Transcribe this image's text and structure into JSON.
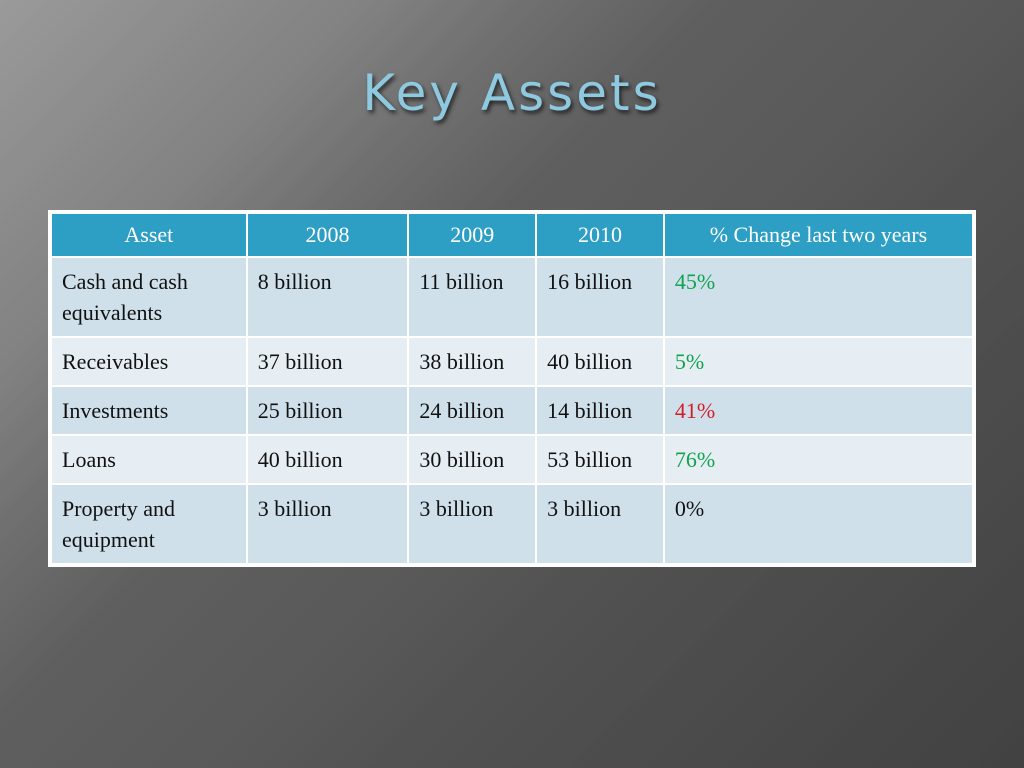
{
  "slide": {
    "title": "Key Assets"
  },
  "table": {
    "headers": [
      "Asset",
      "2008",
      "2009",
      "2010",
      "% Change last two years"
    ],
    "rows": [
      {
        "asset": "Cash and cash equivalents",
        "y2008": "8 billion",
        "y2009": "11 billion",
        "y2010": "16 billion",
        "change": "45%",
        "change_color": "#0fa34f"
      },
      {
        "asset": "Receivables",
        "y2008": "37 billion",
        "y2009": "38 billion",
        "y2010": "40 billion",
        "change": "5%",
        "change_color": "#0fa34f"
      },
      {
        "asset": "Investments",
        "y2008": "25 billion",
        "y2009": "24 billion",
        "y2010": "14 billion",
        "change": "41%",
        "change_color": "#d11d2a"
      },
      {
        "asset": "Loans",
        "y2008": "40 billion",
        "y2009": "30 billion",
        "y2010": "53 billion",
        "change": "76%",
        "change_color": "#0fa34f"
      },
      {
        "asset": "Property and equipment",
        "y2008": "3 billion",
        "y2009": "3 billion",
        "y2010": "3 billion",
        "change": "0%",
        "change_color": "#111111"
      }
    ]
  },
  "colors": {
    "title": "#8ec9e0",
    "header_bg": "#2e9fc4",
    "row_odd_bg": "#cfe0ea",
    "row_even_bg": "#e6eef3",
    "positive": "#0fa34f",
    "negative": "#d11d2a"
  }
}
